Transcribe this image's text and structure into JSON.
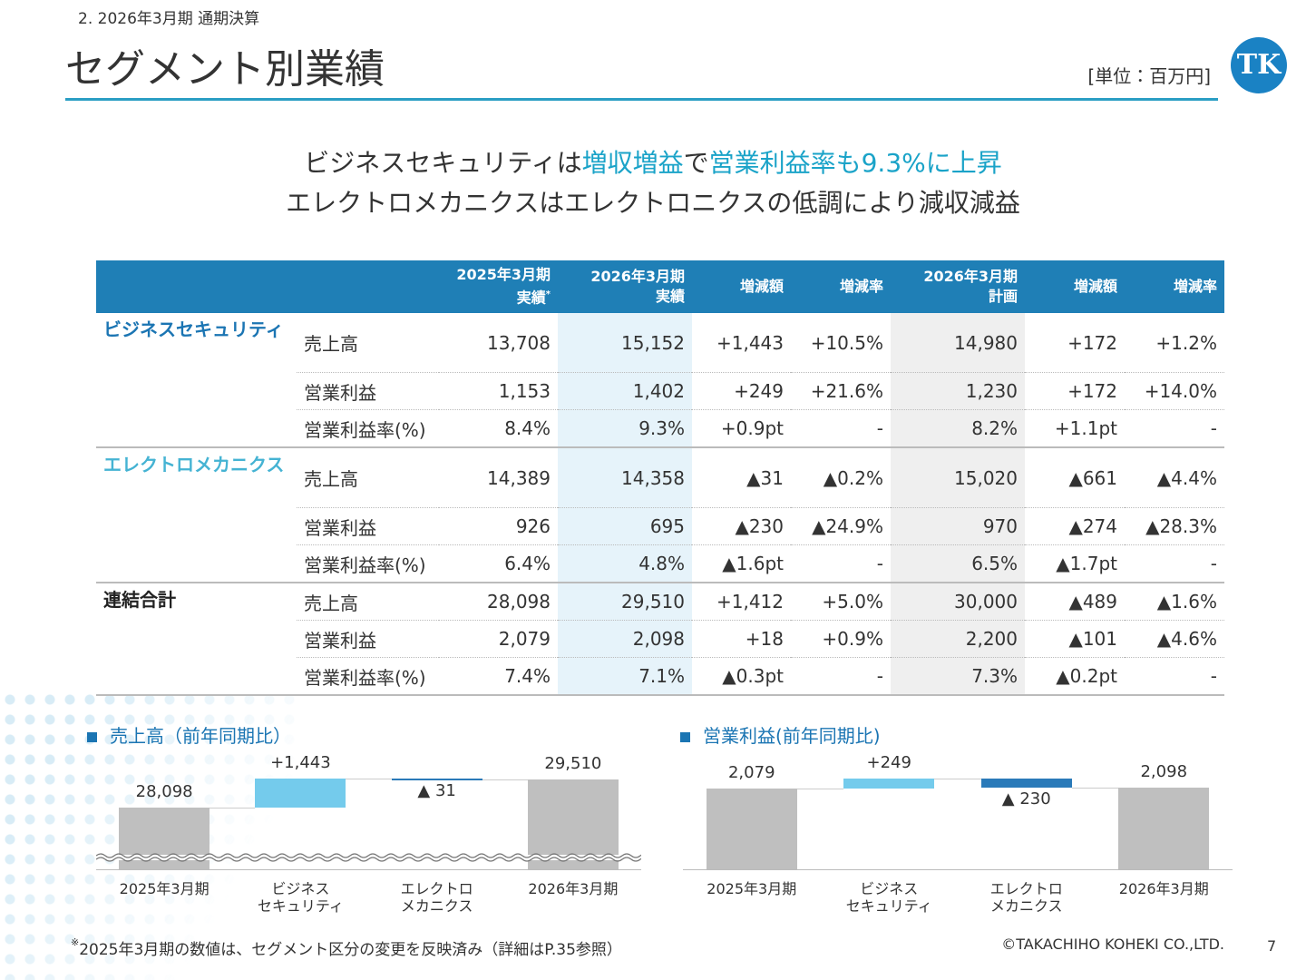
{
  "header": {
    "breadcrumb": "2. 2026年3月期 通期決算",
    "title": "セグメント別業績",
    "unit": "[単位：百万円]",
    "logo": "TK"
  },
  "headline": {
    "lines": [
      [
        "ビジネスセキュリティは",
        "増収増益",
        "で",
        "営業利益率も9.3%に上昇"
      ],
      [
        "エレクトロメカニクスはエレクトロニクスの低調により減収減益"
      ]
    ],
    "accent_color": "#1aa3c8"
  },
  "table": {
    "header": [
      "2025年3月期\n実績",
      "2026年3月期\n実績",
      "増減額",
      "増減率",
      "2026年3月期\n計画",
      "増減額",
      "増減率"
    ],
    "header_note_mark": "*",
    "groups": [
      {
        "name": "ビジネスセキュリティ",
        "color": "#1b75b3",
        "rows": [
          [
            "売上高",
            "13,708",
            "15,152",
            "+1,443",
            "+10.5%",
            "14,980",
            "+172",
            "+1.2%"
          ],
          [
            "営業利益",
            "1,153",
            "1,402",
            "+249",
            "+21.6%",
            "1,230",
            "+172",
            "+14.0%"
          ],
          [
            "営業利益率(%)",
            "8.4%",
            "9.3%",
            "+0.9pt",
            "-",
            "8.2%",
            "+1.1pt",
            "-"
          ]
        ]
      },
      {
        "name": "エレクトロメカニクス",
        "color": "#45b3d3",
        "rows": [
          [
            "売上高",
            "14,389",
            "14,358",
            "▲31",
            "▲0.2%",
            "15,020",
            "▲661",
            "▲4.4%"
          ],
          [
            "営業利益",
            "926",
            "695",
            "▲230",
            "▲24.9%",
            "970",
            "▲274",
            "▲28.3%"
          ],
          [
            "営業利益率(%)",
            "6.4%",
            "4.8%",
            "▲1.6pt",
            "-",
            "6.5%",
            "▲1.7pt",
            "-"
          ]
        ]
      },
      {
        "name": "連結合計",
        "color": "#222222",
        "rows": [
          [
            "売上高",
            "28,098",
            "29,510",
            "+1,412",
            "+5.0%",
            "30,000",
            "▲489",
            "▲1.6%"
          ],
          [
            "営業利益",
            "2,079",
            "2,098",
            "+18",
            "+0.9%",
            "2,200",
            "▲101",
            "▲4.6%"
          ],
          [
            "営業利益率(%)",
            "7.4%",
            "7.1%",
            "▲0.3pt",
            "-",
            "7.3%",
            "▲0.2pt",
            "-"
          ]
        ]
      }
    ]
  },
  "chart_data": [
    {
      "type": "waterfall",
      "title": "売上高（前年同期比）",
      "categories": [
        "2025年3月期",
        "ビジネス\nセキュリティ",
        "エレクトロ\nメカニクス",
        "2026年3月期"
      ],
      "values": [
        28098,
        1443,
        -31,
        29510
      ],
      "value_labels": [
        "28,098",
        "+1,443",
        "▲ 31",
        "29,510"
      ],
      "colors": {
        "total": "#bfbfbf",
        "increase": "#74cbec",
        "decrease": "#2a7ab9"
      },
      "axis_break": true
    },
    {
      "type": "waterfall",
      "title": "営業利益(前年同期比)",
      "categories": [
        "2025年3月期",
        "ビジネス\nセキュリティ",
        "エレクトロ\nメカニクス",
        "2026年3月期"
      ],
      "values": [
        2079,
        249,
        -230,
        2098
      ],
      "value_labels": [
        "2,079",
        "+249",
        "▲ 230",
        "2,098"
      ],
      "colors": {
        "total": "#bfbfbf",
        "increase": "#74cbec",
        "decrease": "#2a7ab9"
      },
      "axis_break": false
    }
  ],
  "footer": {
    "note_mark": "※",
    "note": "2025年3月期の数値は、セグメント区分の変更を反映済み（詳細はP.35参照）",
    "copyright": "©TAKACHIHO KOHEKI CO.,LTD.",
    "page": "7"
  }
}
